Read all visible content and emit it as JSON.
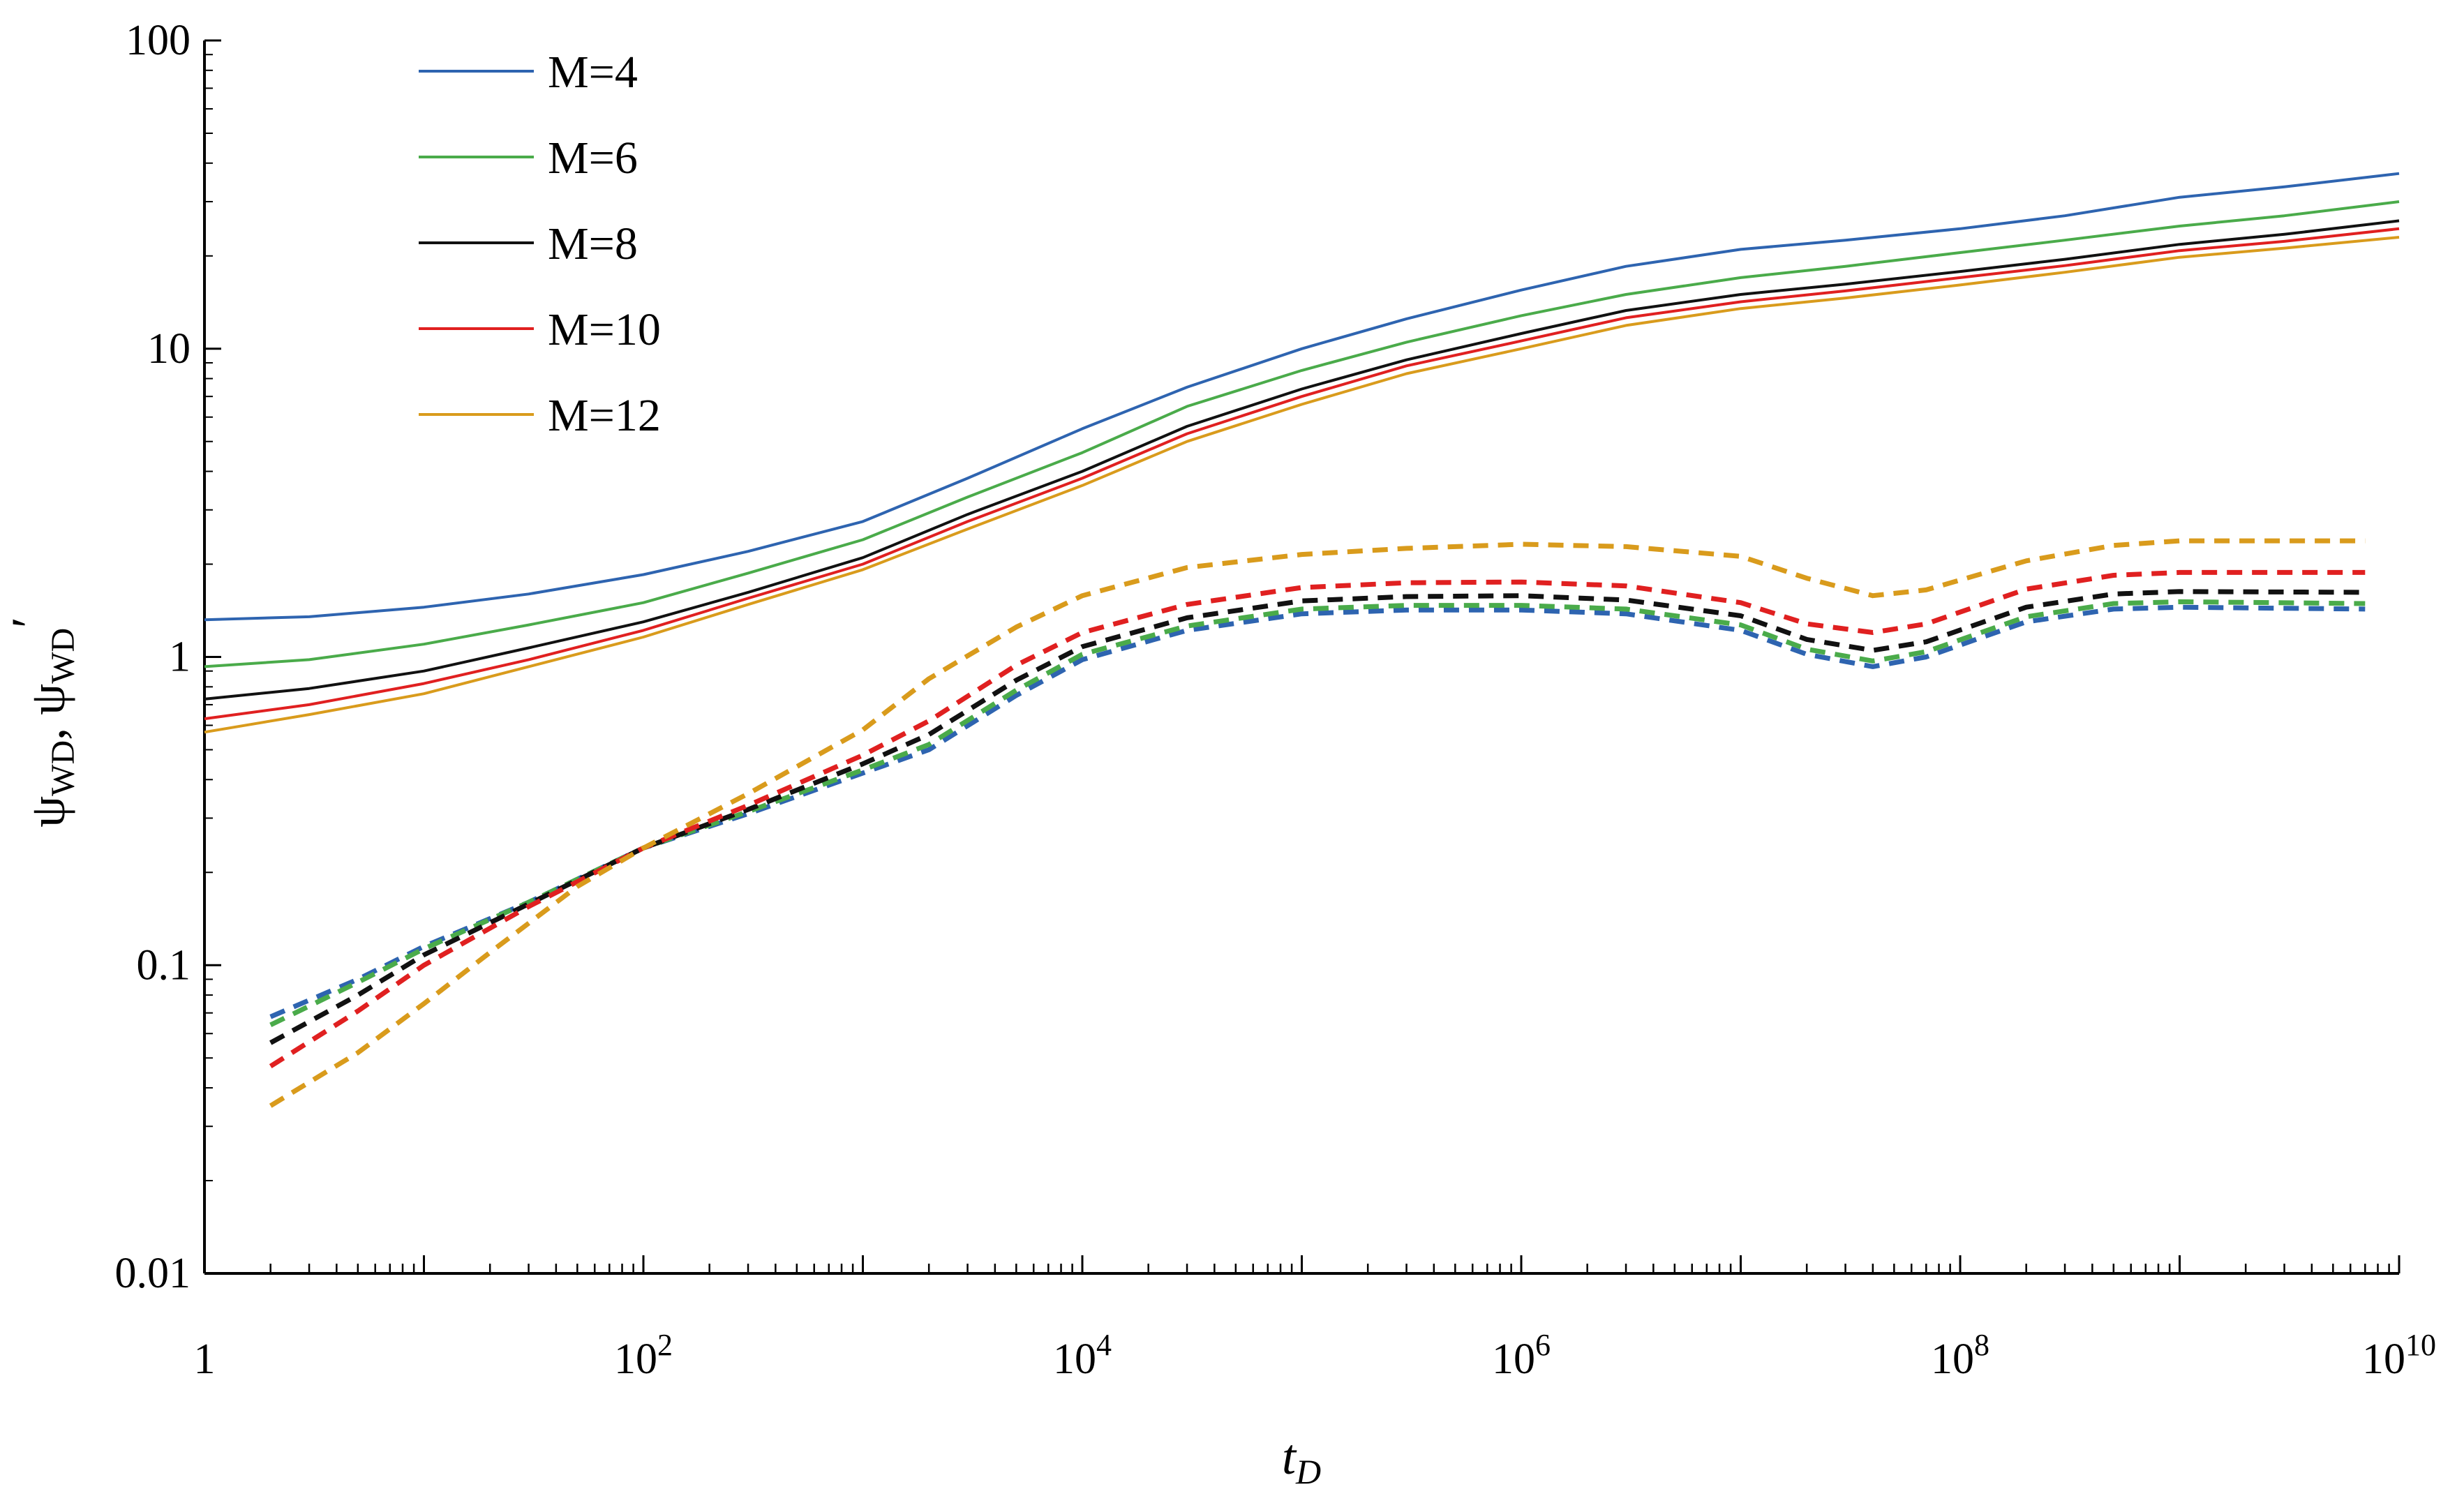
{
  "chart_data": {
    "type": "line",
    "title": "",
    "xscale": "log",
    "yscale": "log",
    "xlim": [
      1,
      10000000000
    ],
    "ylim": [
      0.01,
      100
    ],
    "xlabel": {
      "main": "t",
      "sub": "D"
    },
    "ylabel": {
      "psi1": "ψ",
      "sub1": "WD",
      "sep": ", ",
      "psi2": "ψ",
      "sub2": "WD",
      "prime": "′"
    },
    "x_ticks": [
      {
        "value": 1,
        "base": "1",
        "exp": ""
      },
      {
        "value": 100,
        "base": "10",
        "exp": "2"
      },
      {
        "value": 10000,
        "base": "10",
        "exp": "4"
      },
      {
        "value": 1000000,
        "base": "10",
        "exp": "6"
      },
      {
        "value": 100000000,
        "base": "10",
        "exp": "8"
      },
      {
        "value": 10000000000,
        "base": "10",
        "exp": "10"
      }
    ],
    "y_ticks": [
      {
        "value": 100,
        "label": "100"
      },
      {
        "value": 10,
        "label": "10"
      },
      {
        "value": 1,
        "label": "1"
      },
      {
        "value": 0.1,
        "label": "0.1"
      },
      {
        "value": 0.01,
        "label": "0.01"
      }
    ],
    "legend_position": "top-left",
    "series": [
      {
        "name": "M=4",
        "color": "#2e64b0",
        "pressure": [
          [
            1,
            1.32
          ],
          [
            3,
            1.35
          ],
          [
            10,
            1.45
          ],
          [
            30,
            1.6
          ],
          [
            100,
            1.85
          ],
          [
            300,
            2.2
          ],
          [
            1000,
            2.75
          ],
          [
            3000,
            3.8
          ],
          [
            10000,
            5.5
          ],
          [
            30000,
            7.5
          ],
          [
            100000,
            10
          ],
          [
            300000,
            12.5
          ],
          [
            1000000,
            15.5
          ],
          [
            3000000,
            18.5
          ],
          [
            10000000,
            21
          ],
          [
            30000000,
            22.5
          ],
          [
            100000000,
            24.5
          ],
          [
            300000000,
            27
          ],
          [
            1000000000,
            31
          ],
          [
            3000000000,
            33.5
          ],
          [
            10000000000,
            37
          ]
        ],
        "derivative": [
          [
            2,
            0.068
          ],
          [
            5,
            0.09
          ],
          [
            10,
            0.115
          ],
          [
            30,
            0.16
          ],
          [
            100,
            0.24
          ],
          [
            300,
            0.31
          ],
          [
            1000,
            0.42
          ],
          [
            2000,
            0.5
          ],
          [
            5000,
            0.75
          ],
          [
            10000,
            0.98
          ],
          [
            30000,
            1.22
          ],
          [
            100000,
            1.38
          ],
          [
            300000,
            1.42
          ],
          [
            1000000,
            1.42
          ],
          [
            3000000,
            1.38
          ],
          [
            10000000,
            1.22
          ],
          [
            20000000,
            1.02
          ],
          [
            40000000,
            0.93
          ],
          [
            70000000,
            1.0
          ],
          [
            200000000,
            1.3
          ],
          [
            500000000,
            1.43
          ],
          [
            1000000000,
            1.45
          ],
          [
            7000000000,
            1.43
          ]
        ]
      },
      {
        "name": "M=6",
        "color": "#4aab4a",
        "pressure": [
          [
            1,
            0.93
          ],
          [
            3,
            0.98
          ],
          [
            10,
            1.1
          ],
          [
            30,
            1.27
          ],
          [
            100,
            1.5
          ],
          [
            300,
            1.87
          ],
          [
            1000,
            2.4
          ],
          [
            3000,
            3.3
          ],
          [
            10000,
            4.6
          ],
          [
            30000,
            6.5
          ],
          [
            100000,
            8.5
          ],
          [
            300000,
            10.5
          ],
          [
            1000000,
            12.8
          ],
          [
            3000000,
            15
          ],
          [
            10000000,
            17
          ],
          [
            30000000,
            18.5
          ],
          [
            100000000,
            20.5
          ],
          [
            300000000,
            22.5
          ],
          [
            1000000000,
            25
          ],
          [
            3000000000,
            27
          ],
          [
            10000000000,
            30
          ]
        ],
        "derivative": [
          [
            2,
            0.064
          ],
          [
            5,
            0.088
          ],
          [
            10,
            0.113
          ],
          [
            30,
            0.16
          ],
          [
            100,
            0.24
          ],
          [
            300,
            0.315
          ],
          [
            1000,
            0.43
          ],
          [
            2000,
            0.52
          ],
          [
            5000,
            0.78
          ],
          [
            10000,
            1.02
          ],
          [
            30000,
            1.26
          ],
          [
            100000,
            1.43
          ],
          [
            300000,
            1.47
          ],
          [
            1000000,
            1.47
          ],
          [
            3000000,
            1.43
          ],
          [
            10000000,
            1.27
          ],
          [
            20000000,
            1.06
          ],
          [
            40000000,
            0.97
          ],
          [
            70000000,
            1.04
          ],
          [
            200000000,
            1.35
          ],
          [
            500000000,
            1.49
          ],
          [
            1000000000,
            1.51
          ],
          [
            7000000000,
            1.49
          ]
        ]
      },
      {
        "name": "M=8",
        "color": "#111111",
        "pressure": [
          [
            1,
            0.73
          ],
          [
            3,
            0.79
          ],
          [
            10,
            0.9
          ],
          [
            30,
            1.07
          ],
          [
            100,
            1.3
          ],
          [
            300,
            1.62
          ],
          [
            1000,
            2.1
          ],
          [
            3000,
            2.9
          ],
          [
            10000,
            4.0
          ],
          [
            30000,
            5.6
          ],
          [
            100000,
            7.4
          ],
          [
            300000,
            9.2
          ],
          [
            1000000,
            11.2
          ],
          [
            3000000,
            13.3
          ],
          [
            10000000,
            15
          ],
          [
            30000000,
            16.2
          ],
          [
            100000000,
            17.8
          ],
          [
            300000000,
            19.5
          ],
          [
            1000000000,
            21.8
          ],
          [
            3000000000,
            23.5
          ],
          [
            10000000000,
            26
          ]
        ],
        "derivative": [
          [
            2,
            0.056
          ],
          [
            5,
            0.08
          ],
          [
            10,
            0.108
          ],
          [
            30,
            0.158
          ],
          [
            100,
            0.24
          ],
          [
            300,
            0.32
          ],
          [
            1000,
            0.45
          ],
          [
            2000,
            0.56
          ],
          [
            5000,
            0.84
          ],
          [
            10000,
            1.08
          ],
          [
            30000,
            1.34
          ],
          [
            100000,
            1.52
          ],
          [
            300000,
            1.57
          ],
          [
            1000000,
            1.58
          ],
          [
            3000000,
            1.53
          ],
          [
            10000000,
            1.36
          ],
          [
            20000000,
            1.14
          ],
          [
            40000000,
            1.05
          ],
          [
            70000000,
            1.12
          ],
          [
            200000000,
            1.45
          ],
          [
            500000000,
            1.6
          ],
          [
            1000000000,
            1.63
          ],
          [
            7000000000,
            1.62
          ]
        ]
      },
      {
        "name": "M=10",
        "color": "#e02020",
        "pressure": [
          [
            1,
            0.63
          ],
          [
            3,
            0.7
          ],
          [
            10,
            0.82
          ],
          [
            30,
            0.98
          ],
          [
            100,
            1.22
          ],
          [
            300,
            1.55
          ],
          [
            1000,
            2.0
          ],
          [
            3000,
            2.75
          ],
          [
            10000,
            3.8
          ],
          [
            30000,
            5.3
          ],
          [
            100000,
            7.0
          ],
          [
            300000,
            8.8
          ],
          [
            1000000,
            10.6
          ],
          [
            3000000,
            12.6
          ],
          [
            10000000,
            14.2
          ],
          [
            30000000,
            15.4
          ],
          [
            100000000,
            17
          ],
          [
            300000000,
            18.6
          ],
          [
            1000000000,
            20.8
          ],
          [
            3000000000,
            22.3
          ],
          [
            10000000000,
            24.5
          ]
        ],
        "derivative": [
          [
            2,
            0.047
          ],
          [
            5,
            0.071
          ],
          [
            10,
            0.1
          ],
          [
            30,
            0.155
          ],
          [
            100,
            0.24
          ],
          [
            300,
            0.33
          ],
          [
            1000,
            0.48
          ],
          [
            2000,
            0.62
          ],
          [
            5000,
            0.94
          ],
          [
            10000,
            1.2
          ],
          [
            30000,
            1.48
          ],
          [
            100000,
            1.68
          ],
          [
            300000,
            1.74
          ],
          [
            1000000,
            1.75
          ],
          [
            3000000,
            1.7
          ],
          [
            10000000,
            1.5
          ],
          [
            20000000,
            1.28
          ],
          [
            40000000,
            1.2
          ],
          [
            70000000,
            1.28
          ],
          [
            200000000,
            1.66
          ],
          [
            500000000,
            1.84
          ],
          [
            1000000000,
            1.88
          ],
          [
            7000000000,
            1.88
          ]
        ]
      },
      {
        "name": "M=12",
        "color": "#d99b1c",
        "pressure": [
          [
            1,
            0.57
          ],
          [
            3,
            0.65
          ],
          [
            10,
            0.76
          ],
          [
            30,
            0.93
          ],
          [
            100,
            1.16
          ],
          [
            300,
            1.48
          ],
          [
            1000,
            1.92
          ],
          [
            3000,
            2.6
          ],
          [
            10000,
            3.6
          ],
          [
            30000,
            5.0
          ],
          [
            100000,
            6.6
          ],
          [
            300000,
            8.3
          ],
          [
            1000000,
            10
          ],
          [
            3000000,
            11.9
          ],
          [
            10000000,
            13.5
          ],
          [
            30000000,
            14.6
          ],
          [
            100000000,
            16.1
          ],
          [
            300000000,
            17.7
          ],
          [
            1000000000,
            19.8
          ],
          [
            3000000000,
            21.2
          ],
          [
            10000000000,
            23
          ]
        ],
        "derivative": [
          [
            2,
            0.035
          ],
          [
            5,
            0.052
          ],
          [
            10,
            0.075
          ],
          [
            20,
            0.11
          ],
          [
            50,
            0.18
          ],
          [
            100,
            0.24
          ],
          [
            300,
            0.36
          ],
          [
            1000,
            0.58
          ],
          [
            2000,
            0.85
          ],
          [
            5000,
            1.25
          ],
          [
            10000,
            1.58
          ],
          [
            30000,
            1.95
          ],
          [
            100000,
            2.15
          ],
          [
            300000,
            2.25
          ],
          [
            1000000,
            2.32
          ],
          [
            3000000,
            2.28
          ],
          [
            10000000,
            2.12
          ],
          [
            20000000,
            1.8
          ],
          [
            40000000,
            1.58
          ],
          [
            70000000,
            1.65
          ],
          [
            200000000,
            2.05
          ],
          [
            500000000,
            2.3
          ],
          [
            1000000000,
            2.38
          ],
          [
            7000000000,
            2.38
          ]
        ]
      }
    ]
  }
}
